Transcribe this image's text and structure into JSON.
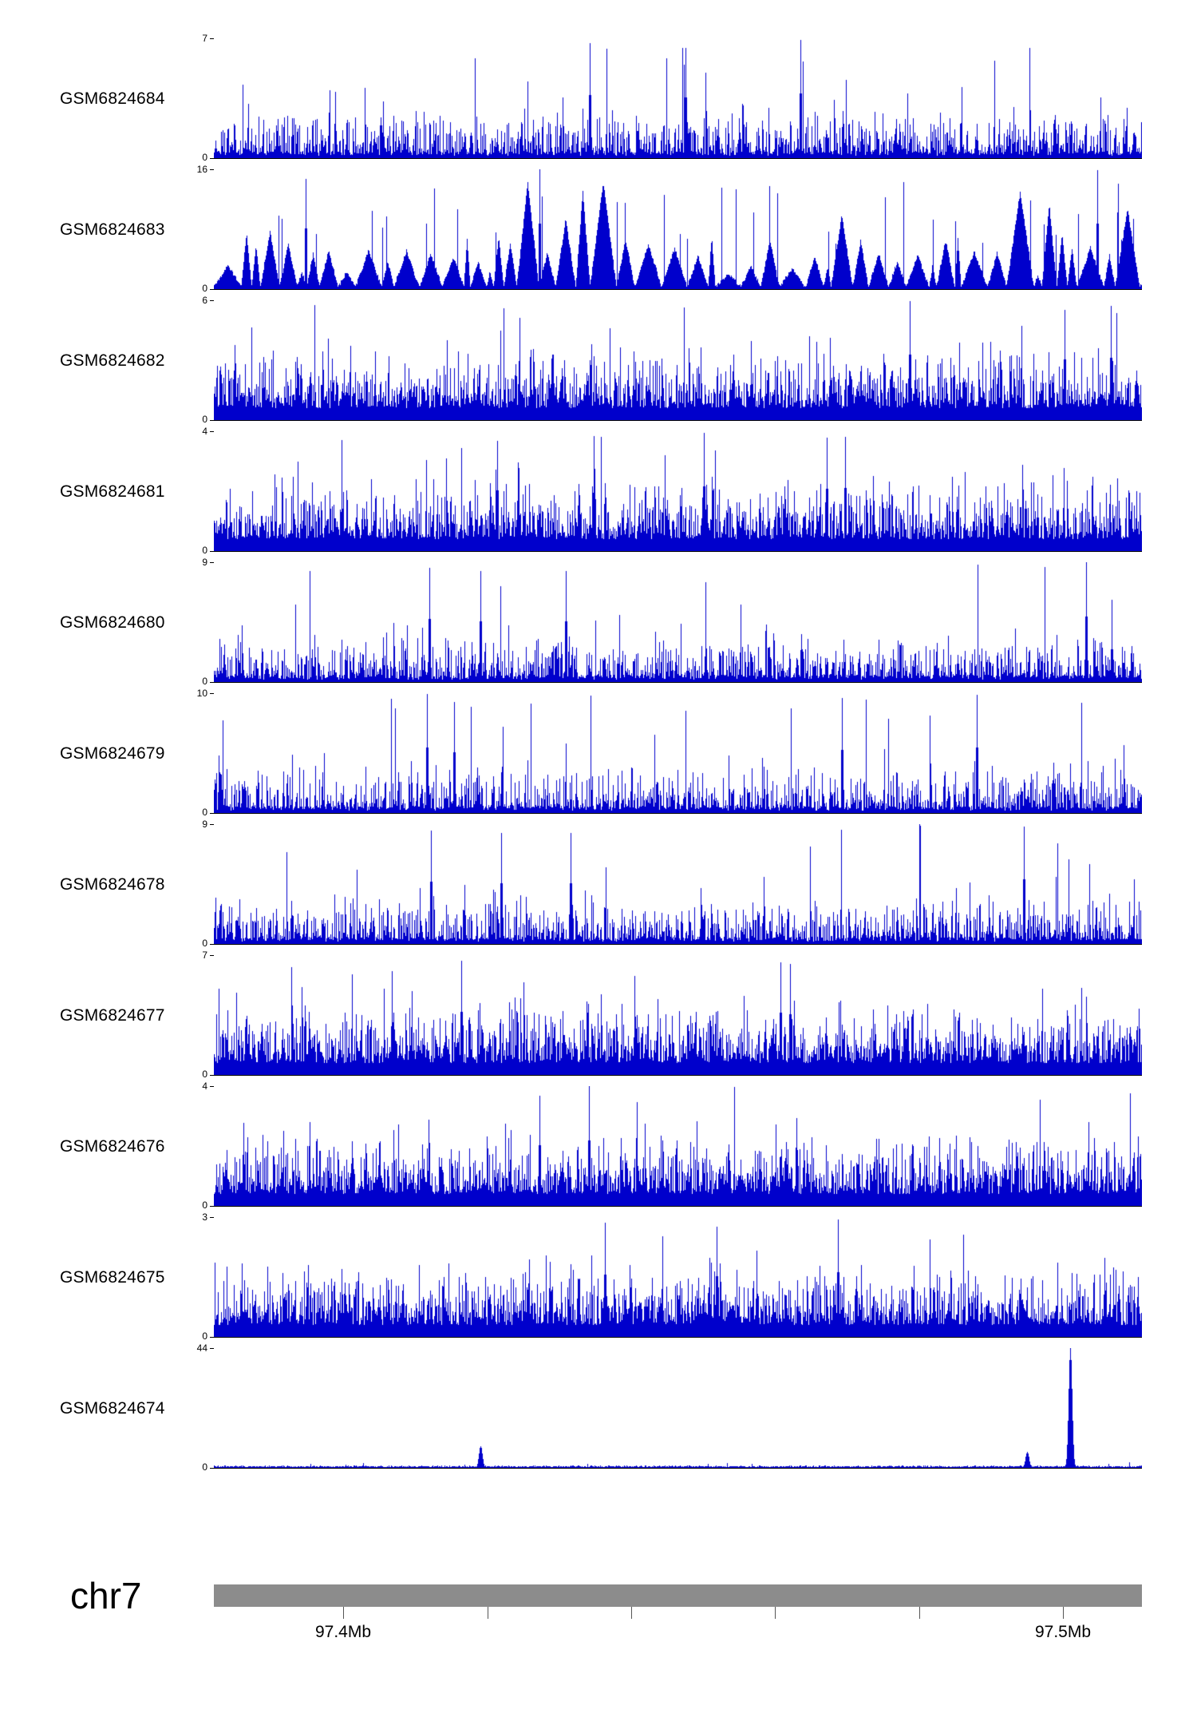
{
  "chart_data": {
    "type": "area",
    "description": "Genome browser coverage signal tracks",
    "chromosome": "chr7",
    "x_axis": {
      "unit": "Mb",
      "range_mb": [
        97.382,
        97.511
      ],
      "ticks": [
        {
          "value_mb": 97.4,
          "label": "97.4Mb"
        },
        {
          "value_mb": 97.42,
          "label": ""
        },
        {
          "value_mb": 97.44,
          "label": ""
        },
        {
          "value_mb": 97.46,
          "label": ""
        },
        {
          "value_mb": 97.48,
          "label": ""
        },
        {
          "value_mb": 97.5,
          "label": "97.5Mb"
        }
      ]
    },
    "y_axis": {
      "min_label": "0"
    },
    "signal_color": "#0000cc",
    "ideogram_color": "#8c8c8c",
    "tracks": [
      {
        "label": "GSM6824684",
        "ymin": 0,
        "ymax": 7,
        "profile": "spiky"
      },
      {
        "label": "GSM6824683",
        "ymin": 0,
        "ymax": 16,
        "profile": "dense-triangles"
      },
      {
        "label": "GSM6824682",
        "ymin": 0,
        "ymax": 6,
        "profile": "spiky-dense"
      },
      {
        "label": "GSM6824681",
        "ymin": 0,
        "ymax": 4,
        "profile": "spiky-dense"
      },
      {
        "label": "GSM6824680",
        "ymin": 0,
        "ymax": 9,
        "profile": "spiky"
      },
      {
        "label": "GSM6824679",
        "ymin": 0,
        "ymax": 10,
        "profile": "spiky"
      },
      {
        "label": "GSM6824678",
        "ymin": 0,
        "ymax": 9,
        "profile": "spiky"
      },
      {
        "label": "GSM6824677",
        "ymin": 0,
        "ymax": 7,
        "profile": "spiky-dense"
      },
      {
        "label": "GSM6824676",
        "ymin": 0,
        "ymax": 4,
        "profile": "spiky-dense"
      },
      {
        "label": "GSM6824675",
        "ymin": 0,
        "ymax": 3,
        "profile": "spiky-dense"
      },
      {
        "label": "GSM6824674",
        "ymin": 0,
        "ymax": 44,
        "profile": "flat-with-spikes",
        "notable_peaks": [
          {
            "position_mb": 97.501,
            "value": 44
          },
          {
            "position_mb": 97.495,
            "value": 6
          },
          {
            "position_mb": 97.419,
            "value": 8
          }
        ]
      }
    ]
  }
}
